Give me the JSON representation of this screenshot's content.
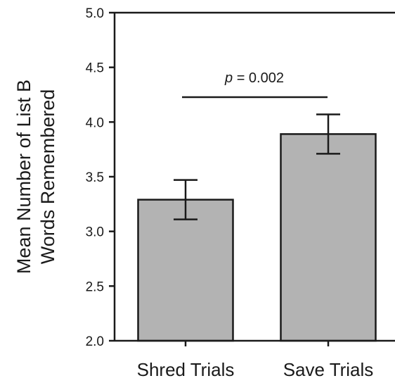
{
  "chart_data": {
    "type": "bar",
    "categories": [
      "Shred Trials",
      "Save Trials"
    ],
    "values": [
      3.29,
      3.89
    ],
    "error_bars": [
      0.18,
      0.18
    ],
    "ylabel_lines": [
      "Mean Number of List B",
      "Words Remembered"
    ],
    "ylim": [
      2.0,
      5.0
    ],
    "yticks": [
      "2.0",
      "2.5",
      "3.0",
      "3.5",
      "4.0",
      "4.5",
      "5.0"
    ],
    "annotation": {
      "prefix": "p",
      "text": " = 0.002"
    },
    "bar_color": "#b3b3b3",
    "edge_color": "#1a1a1a",
    "grid": false
  }
}
